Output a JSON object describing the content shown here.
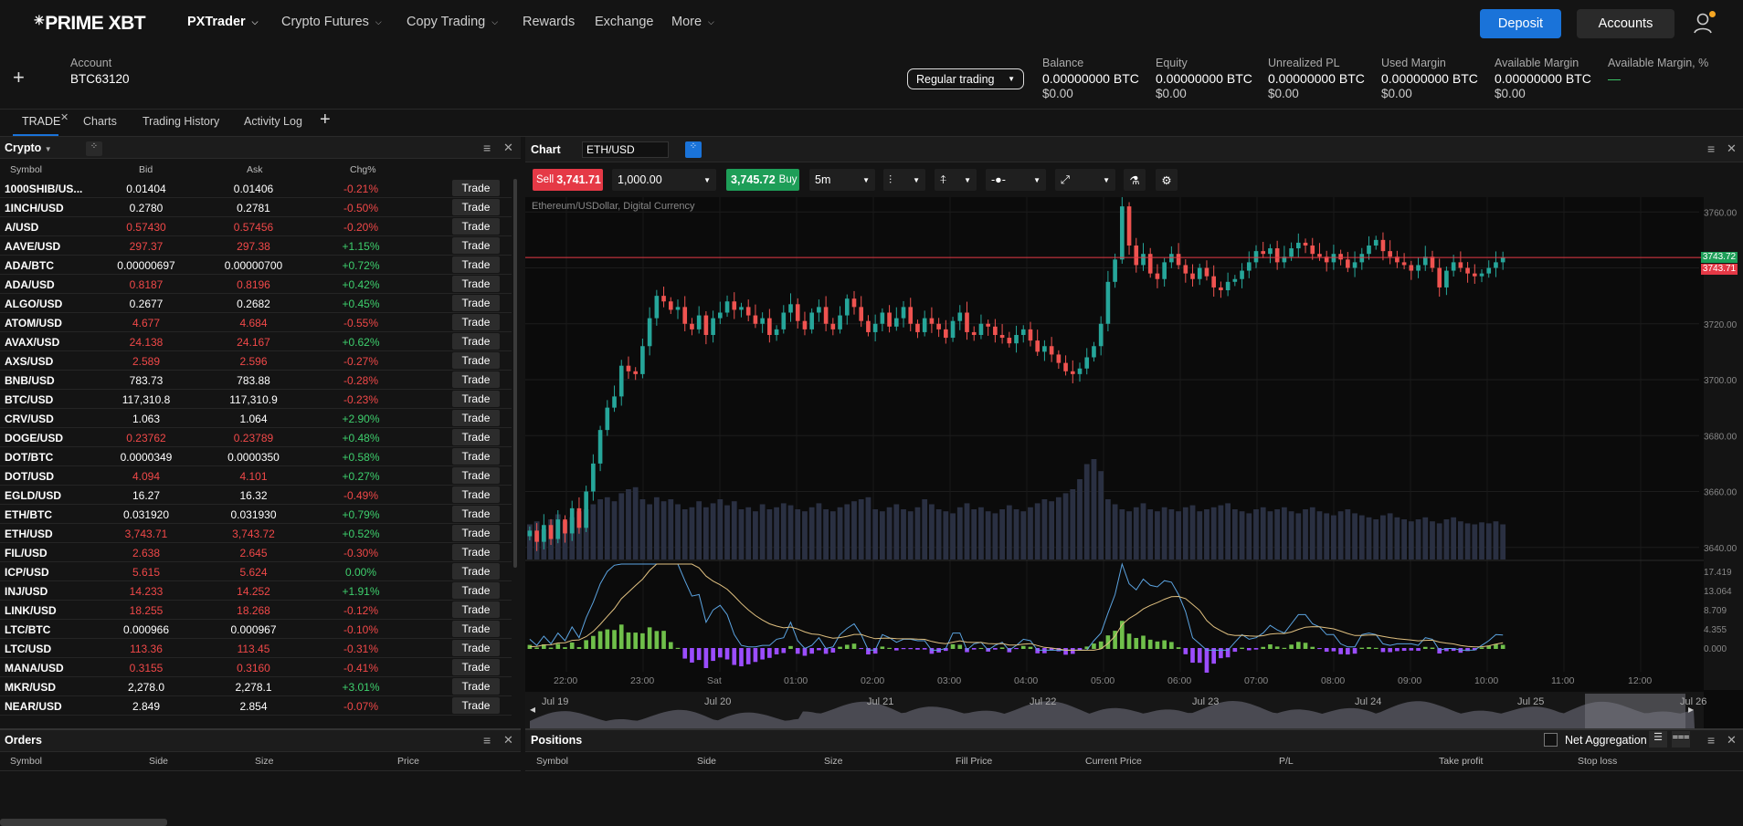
{
  "brand": {
    "logo": "PRIME XBT"
  },
  "nav": [
    {
      "label": "PXTrader",
      "chevron": true,
      "active": true
    },
    {
      "label": "Crypto Futures",
      "chevron": true
    },
    {
      "label": "Copy Trading",
      "chevron": true
    },
    {
      "label": "Rewards",
      "chevron": false
    },
    {
      "label": "Exchange",
      "chevron": false
    },
    {
      "label": "More",
      "chevron": true
    }
  ],
  "header_buttons": {
    "deposit": "Deposit",
    "accounts": "Accounts"
  },
  "account": {
    "label": "Account",
    "id": "BTC63120",
    "mode": "Regular trading",
    "stats": [
      {
        "label": "Balance",
        "value": "0.00000000 BTC",
        "usd": "$0.00"
      },
      {
        "label": "Equity",
        "value": "0.00000000 BTC",
        "usd": "$0.00"
      },
      {
        "label": "Unrealized PL",
        "value": "0.00000000 BTC",
        "usd": "$0.00"
      },
      {
        "label": "Used Margin",
        "value": "0.00000000 BTC",
        "usd": "$0.00"
      },
      {
        "label": "Available Margin",
        "value": "0.00000000 BTC",
        "usd": "$0.00"
      },
      {
        "label": "Available Margin, %",
        "value": "—",
        "usd": ""
      }
    ]
  },
  "tabs": [
    "TRADE",
    "Charts",
    "Trading History",
    "Activity Log"
  ],
  "watchlist": {
    "title": "Crypto",
    "columns": [
      "Symbol",
      "Bid",
      "Ask",
      "Chg%"
    ],
    "trade_label": "Trade",
    "rows": [
      {
        "symbol": "1000SHIB/US...",
        "bid": "0.01404",
        "ask": "0.01406",
        "chg": "-0.21%",
        "dir": "n"
      },
      {
        "symbol": "1INCH/USD",
        "bid": "0.2780",
        "ask": "0.2781",
        "chg": "-0.50%",
        "dir": "n"
      },
      {
        "symbol": "A/USD",
        "bid": "0.57430",
        "ask": "0.57456",
        "chg": "-0.20%",
        "dir": "d"
      },
      {
        "symbol": "AAVE/USD",
        "bid": "297.37",
        "ask": "297.38",
        "chg": "+1.15%",
        "dir": "d"
      },
      {
        "symbol": "ADA/BTC",
        "bid": "0.00000697",
        "ask": "0.00000700",
        "chg": "+0.72%",
        "dir": "n"
      },
      {
        "symbol": "ADA/USD",
        "bid": "0.8187",
        "ask": "0.8196",
        "chg": "+0.42%",
        "dir": "d"
      },
      {
        "symbol": "ALGO/USD",
        "bid": "0.2677",
        "ask": "0.2682",
        "chg": "+0.45%",
        "dir": "n"
      },
      {
        "symbol": "ATOM/USD",
        "bid": "4.677",
        "ask": "4.684",
        "chg": "-0.55%",
        "dir": "d"
      },
      {
        "symbol": "AVAX/USD",
        "bid": "24.138",
        "ask": "24.167",
        "chg": "+0.62%",
        "dir": "d"
      },
      {
        "symbol": "AXS/USD",
        "bid": "2.589",
        "ask": "2.596",
        "chg": "-0.27%",
        "dir": "d"
      },
      {
        "symbol": "BNB/USD",
        "bid": "783.73",
        "ask": "783.88",
        "chg": "-0.28%",
        "dir": "n"
      },
      {
        "symbol": "BTC/USD",
        "bid": "117,310.8",
        "ask": "117,310.9",
        "chg": "-0.23%",
        "dir": "n"
      },
      {
        "symbol": "CRV/USD",
        "bid": "1.063",
        "ask": "1.064",
        "chg": "+2.90%",
        "dir": "n"
      },
      {
        "symbol": "DOGE/USD",
        "bid": "0.23762",
        "ask": "0.23789",
        "chg": "+0.48%",
        "dir": "d"
      },
      {
        "symbol": "DOT/BTC",
        "bid": "0.0000349",
        "ask": "0.0000350",
        "chg": "+0.58%",
        "dir": "n"
      },
      {
        "symbol": "DOT/USD",
        "bid": "4.094",
        "ask": "4.101",
        "chg": "+0.27%",
        "dir": "d"
      },
      {
        "symbol": "EGLD/USD",
        "bid": "16.27",
        "ask": "16.32",
        "chg": "-0.49%",
        "dir": "n"
      },
      {
        "symbol": "ETH/BTC",
        "bid": "0.031920",
        "ask": "0.031930",
        "chg": "+0.79%",
        "dir": "n"
      },
      {
        "symbol": "ETH/USD",
        "bid": "3,743.71",
        "ask": "3,743.72",
        "chg": "+0.52%",
        "dir": "d"
      },
      {
        "symbol": "FIL/USD",
        "bid": "2.638",
        "ask": "2.645",
        "chg": "-0.30%",
        "dir": "d"
      },
      {
        "symbol": "ICP/USD",
        "bid": "5.615",
        "ask": "5.624",
        "chg": "0.00%",
        "dir": "d"
      },
      {
        "symbol": "INJ/USD",
        "bid": "14.233",
        "ask": "14.252",
        "chg": "+1.91%",
        "dir": "d"
      },
      {
        "symbol": "LINK/USD",
        "bid": "18.255",
        "ask": "18.268",
        "chg": "-0.12%",
        "dir": "d"
      },
      {
        "symbol": "LTC/BTC",
        "bid": "0.000966",
        "ask": "0.000967",
        "chg": "-0.10%",
        "dir": "n"
      },
      {
        "symbol": "LTC/USD",
        "bid": "113.36",
        "ask": "113.45",
        "chg": "-0.31%",
        "dir": "d"
      },
      {
        "symbol": "MANA/USD",
        "bid": "0.3155",
        "ask": "0.3160",
        "chg": "-0.41%",
        "dir": "d"
      },
      {
        "symbol": "MKR/USD",
        "bid": "2,278.0",
        "ask": "2,278.1",
        "chg": "+3.01%",
        "dir": "n"
      },
      {
        "symbol": "NEAR/USD",
        "bid": "2.849",
        "ask": "2.854",
        "chg": "-0.07%",
        "dir": "n"
      }
    ]
  },
  "chart_panel": {
    "title": "Chart",
    "symbol": "ETH/USD",
    "sell_label": "Sell",
    "sell_price": "3,741.71",
    "quantity": "1,000.00",
    "buy_price": "3,745.72",
    "buy_label": "Buy",
    "interval": "5m",
    "instrument_desc": "Ethereum/USDollar, Digital Currency",
    "ask_tag": "3743.72",
    "bid_tag": "3743.71"
  },
  "chart_data": {
    "type": "candlestick",
    "title": "Ethereum/USDollar, Digital Currency",
    "price_ticks": [
      "3760.00",
      "3740.00",
      "3720.00",
      "3700.00",
      "3680.00",
      "3660.00",
      "3640.00"
    ],
    "indicator_ticks": [
      "17.419",
      "13.064",
      "8.709",
      "4.355",
      "0.000"
    ],
    "time_ticks": [
      "22:00",
      "23:00",
      "Sat",
      "01:00",
      "02:00",
      "03:00",
      "04:00",
      "05:00",
      "06:00",
      "07:00",
      "08:00",
      "09:00",
      "10:00",
      "11:00",
      "12:00"
    ],
    "navigator_ticks": [
      "Jul 19",
      "Jul 20",
      "Jul 21",
      "Jul 22",
      "Jul 23",
      "Jul 24",
      "Jul 25",
      "Jul 26"
    ],
    "current_price": 3743.71,
    "close_path": [
      3646,
      3642,
      3648,
      3643,
      3650,
      3645,
      3654,
      3647,
      3660,
      3670,
      3682,
      3690,
      3694,
      3705,
      3703,
      3702,
      3712,
      3722,
      3730,
      3728,
      3725,
      3726,
      3720,
      3718,
      3723,
      3716,
      3722,
      3724,
      3728,
      3725,
      3726,
      3723,
      3720,
      3722,
      3716,
      3718,
      3724,
      3727,
      3721,
      3718,
      3724,
      3726,
      3720,
      3718,
      3723,
      3729,
      3726,
      3721,
      3717,
      3720,
      3724,
      3719,
      3722,
      3726,
      3720,
      3717,
      3722,
      3720,
      3718,
      3715,
      3721,
      3724,
      3717,
      3716,
      3720,
      3719,
      3716,
      3715,
      3713,
      3716,
      3718,
      3714,
      3710,
      3712,
      3709,
      3706,
      3703,
      3702,
      3704,
      3708,
      3712,
      3720,
      3735,
      3743,
      3762,
      3748,
      3741,
      3745,
      3738,
      3736,
      3742,
      3745,
      3741,
      3738,
      3736,
      3740,
      3737,
      3733,
      3732,
      3735,
      3736,
      3739,
      3742,
      3746,
      3745,
      3747,
      3742,
      3744,
      3747,
      3749,
      3748,
      3745,
      3744,
      3742,
      3745,
      3743,
      3740,
      3742,
      3745,
      3748,
      3750,
      3746,
      3744,
      3742,
      3741,
      3739,
      3741,
      3744,
      3740,
      3733,
      3739,
      3742,
      3740,
      3738,
      3737,
      3738,
      3740,
      3742,
      3743.7
    ],
    "volume": [
      35,
      38,
      30,
      40,
      45,
      38,
      42,
      48,
      50,
      55,
      60,
      62,
      58,
      66,
      70,
      72,
      60,
      55,
      62,
      58,
      60,
      55,
      50,
      52,
      58,
      52,
      56,
      60,
      54,
      58,
      50,
      52,
      48,
      55,
      50,
      52,
      56,
      54,
      50,
      48,
      52,
      56,
      50,
      48,
      52,
      55,
      58,
      60,
      62,
      50,
      48,
      52,
      55,
      50,
      48,
      52,
      60,
      55,
      50,
      48,
      46,
      52,
      56,
      50,
      52,
      48,
      46,
      50,
      54,
      50,
      48,
      52,
      56,
      60,
      58,
      62,
      66,
      70,
      80,
      95,
      100,
      88,
      60,
      55,
      50,
      48,
      52,
      56,
      50,
      48,
      52,
      50,
      48,
      52,
      54,
      48,
      50,
      52,
      54,
      56,
      50,
      48,
      46,
      50,
      52,
      48,
      50,
      52,
      48,
      46,
      50,
      52,
      48,
      46,
      44,
      48,
      50,
      46,
      44,
      42,
      40,
      44,
      46,
      42,
      40,
      38,
      40,
      42,
      38,
      36,
      40,
      42,
      38,
      36,
      35,
      37,
      36,
      38,
      35
    ]
  },
  "orders": {
    "title": "Orders",
    "columns": [
      "Symbol",
      "Side",
      "Size",
      "Price"
    ]
  },
  "positions": {
    "title": "Positions",
    "net_aggregation": "Net Aggregation",
    "columns": [
      "Symbol",
      "Side",
      "Size",
      "Fill Price",
      "Current Price",
      "P/L",
      "Take profit",
      "Stop loss"
    ]
  },
  "colors": {
    "accent": "#1a73d9",
    "up": "#26a69a",
    "down": "#ef5350",
    "sell": "#e53946",
    "buy": "#1e9e58"
  }
}
